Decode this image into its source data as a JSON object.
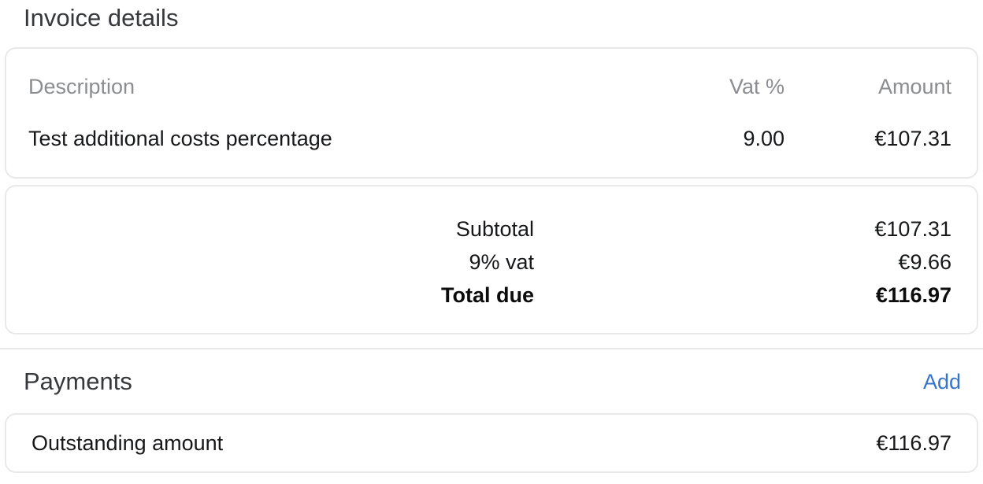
{
  "invoice_section": {
    "title": "Invoice details",
    "line_items_table": {
      "columns": {
        "description": "Description",
        "vat": "Vat %",
        "amount": "Amount"
      },
      "rows": [
        {
          "description": "Test additional costs percentage",
          "vat": "9.00",
          "amount": "€107.31"
        }
      ]
    },
    "totals": {
      "rows": [
        {
          "label": "Subtotal",
          "value": "€107.31"
        },
        {
          "label": "9% vat",
          "value": "€9.66"
        },
        {
          "label": "Total due",
          "value": "€116.97"
        }
      ]
    }
  },
  "payments_section": {
    "title": "Payments",
    "add_label": "Add",
    "outstanding": {
      "label": "Outstanding amount",
      "value": "€116.97"
    }
  },
  "colors": {
    "link_blue": "#3574cb",
    "card_border": "#e9e9e9",
    "muted_text": "#8b8d90",
    "heading_text": "#36383b",
    "body_text": "#17181a"
  }
}
